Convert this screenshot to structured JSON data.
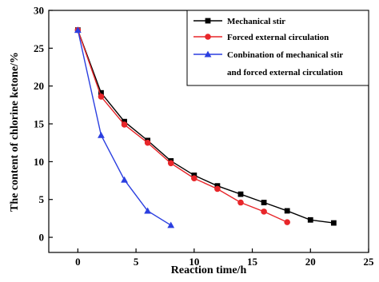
{
  "chart_data": {
    "type": "line",
    "xlabel": "Reaction time/h",
    "ylabel": "The content of chlorine ketone/%",
    "xlim": [
      -2.5,
      25
    ],
    "ylim": [
      -2,
      30
    ],
    "xticks": [
      0,
      5,
      10,
      15,
      20,
      25
    ],
    "yticks": [
      0,
      5,
      10,
      15,
      20,
      25,
      30
    ],
    "grid": false,
    "legend_position": "top-right",
    "series": [
      {
        "name": "Mechanical stir",
        "color": "#000000",
        "marker": "square",
        "x": [
          0,
          2,
          4,
          6,
          8,
          10,
          12,
          14,
          16,
          18,
          20,
          22
        ],
        "y": [
          27.4,
          19.1,
          15.3,
          12.8,
          10.1,
          8.2,
          6.8,
          5.7,
          4.6,
          3.5,
          2.3,
          1.9
        ]
      },
      {
        "name": "Forced external circulation",
        "color": "#e8262a",
        "marker": "circle",
        "x": [
          0,
          2,
          4,
          6,
          8,
          10,
          12,
          14,
          16,
          18
        ],
        "y": [
          27.4,
          18.6,
          14.9,
          12.5,
          9.8,
          7.8,
          6.4,
          4.6,
          3.4,
          2.0
        ]
      },
      {
        "name": "Conbination of mechanical stir",
        "name_line2": "and forced external circulation",
        "color": "#2b3fe0",
        "marker": "triangle",
        "x": [
          0,
          2,
          4,
          6,
          8
        ],
        "y": [
          27.4,
          13.5,
          7.6,
          3.5,
          1.6
        ]
      }
    ]
  }
}
